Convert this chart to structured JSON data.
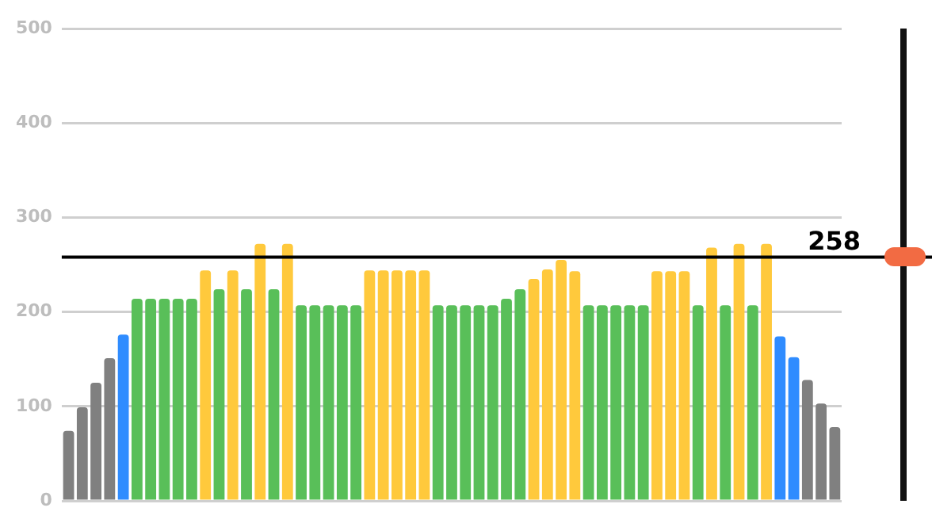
{
  "chart_data": {
    "type": "bar",
    "ylim": [
      0,
      500
    ],
    "yticks": [
      0,
      100,
      200,
      300,
      400,
      500
    ],
    "grid": "y",
    "legend": false,
    "tick_labels": "y",
    "categories": [
      null,
      null,
      null,
      null,
      null,
      null,
      null,
      null,
      null,
      null,
      null,
      null,
      null,
      null,
      null,
      null,
      null,
      null,
      null,
      null,
      null,
      null,
      null,
      null,
      null,
      null,
      null,
      null,
      null,
      null,
      null,
      null,
      null,
      null,
      null,
      null,
      null,
      null,
      null,
      null,
      null,
      null,
      null,
      null,
      null,
      null,
      null,
      null,
      null,
      null,
      null,
      null,
      null,
      null,
      null,
      null,
      null
    ],
    "values": [
      74,
      99,
      125,
      151,
      176,
      214,
      214,
      214,
      214,
      214,
      244,
      224,
      244,
      224,
      272,
      224,
      272,
      207,
      207,
      207,
      207,
      207,
      244,
      244,
      244,
      244,
      244,
      207,
      207,
      207,
      207,
      207,
      214,
      224,
      235,
      245,
      255,
      243,
      207,
      207,
      207,
      207,
      207,
      243,
      243,
      243,
      207,
      268,
      207,
      272,
      207,
      272,
      174,
      152,
      128,
      103,
      78
    ],
    "colors": [
      "#808080",
      "#808080",
      "#808080",
      "#808080",
      "#2f8cff",
      "#59bf59",
      "#59bf59",
      "#59bf59",
      "#59bf59",
      "#59bf59",
      "#ffc93c",
      "#59bf59",
      "#ffc93c",
      "#59bf59",
      "#ffc93c",
      "#59bf59",
      "#ffc93c",
      "#59bf59",
      "#59bf59",
      "#59bf59",
      "#59bf59",
      "#59bf59",
      "#ffc93c",
      "#ffc93c",
      "#ffc93c",
      "#ffc93c",
      "#ffc93c",
      "#59bf59",
      "#59bf59",
      "#59bf59",
      "#59bf59",
      "#59bf59",
      "#59bf59",
      "#59bf59",
      "#ffc93c",
      "#ffc93c",
      "#ffc93c",
      "#ffc93c",
      "#59bf59",
      "#59bf59",
      "#59bf59",
      "#59bf59",
      "#59bf59",
      "#ffc93c",
      "#ffc93c",
      "#ffc93c",
      "#59bf59",
      "#ffc93c",
      "#59bf59",
      "#ffc93c",
      "#59bf59",
      "#ffc93c",
      "#2f8cff",
      "#2f8cff",
      "#808080",
      "#808080",
      "#808080"
    ],
    "ref_lines": [
      {
        "axis": "y",
        "value": 258,
        "label": "258",
        "color": "#000000"
      }
    ]
  }
}
